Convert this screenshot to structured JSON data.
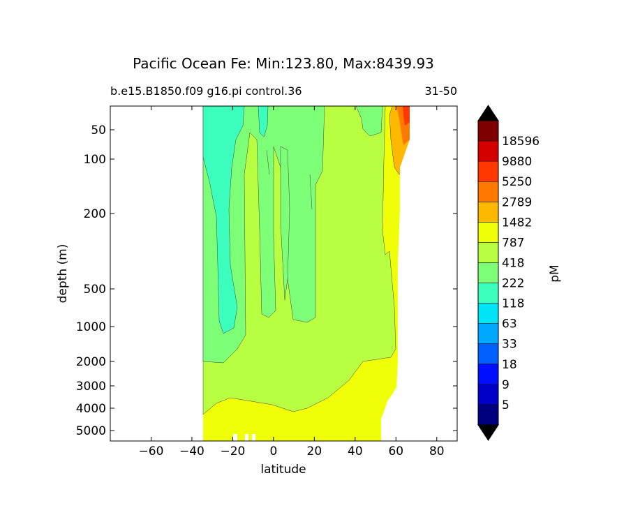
{
  "chart_data": {
    "type": "contour",
    "title": "Pacific Ocean Fe: Min:123.80, Max:8439.93",
    "subtitle_left": "b.e15.B1850.f09 g16.pi control.36",
    "subtitle_right": "31-50",
    "xlabel": "latitude",
    "ylabel": "depth (m)",
    "xlim": [
      -80,
      90
    ],
    "ylim": [
      5500,
      15
    ],
    "yscale": "log-like (depth)",
    "x_ticks": [
      -60,
      -40,
      -20,
      0,
      20,
      40,
      60,
      80
    ],
    "x_tick_labels": [
      "−60",
      "−40",
      "−20",
      "0",
      "20",
      "40",
      "60",
      "80"
    ],
    "y_ticks": [
      50,
      100,
      200,
      500,
      1000,
      2000,
      3000,
      4000,
      5000
    ],
    "y_tick_labels": [
      "50",
      "100",
      "200",
      "500",
      "1000",
      "2000",
      "3000",
      "4000",
      "5000"
    ],
    "data_extent_lat": [
      -34,
      67
    ],
    "colorbar": {
      "label": "pM",
      "levels": [
        "5",
        "9",
        "18",
        "33",
        "63",
        "118",
        "222",
        "418",
        "787",
        "1482",
        "2789",
        "5250",
        "9880",
        "18596"
      ],
      "colors": [
        "#00007f",
        "#0000c8",
        "#0010ff",
        "#0060ff",
        "#00a8ff",
        "#00e4f8",
        "#3cffbe",
        "#7eff78",
        "#b8ff42",
        "#f0ff08",
        "#ffb800",
        "#ff7800",
        "#ff3800",
        "#d40000",
        "#7f0000"
      ],
      "under_color": "#000066",
      "over_color": "#000000",
      "extend": "both"
    },
    "regions_description_values": {
      "surface_to_1000m_southern": "222-418",
      "mid_depth": "418-787",
      "deep_below_3000m": "787-1482",
      "high_latitude_north_surface": "1482-9880"
    }
  }
}
